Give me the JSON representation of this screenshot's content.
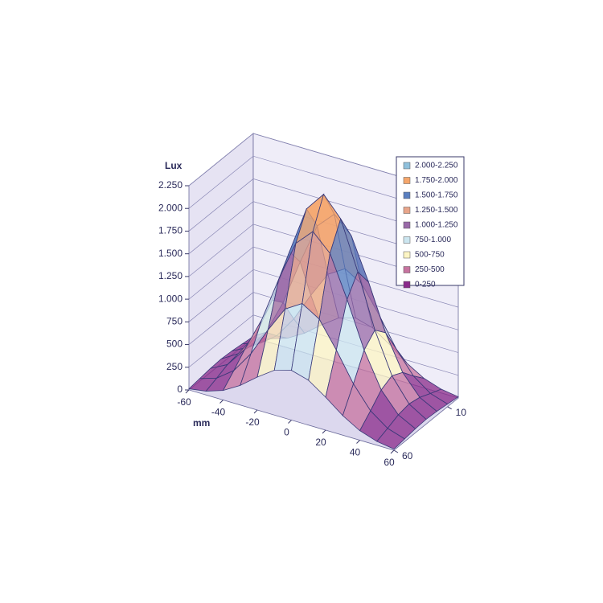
{
  "chart_data": {
    "type": "surface",
    "y_label": "Lux",
    "x_label": "mm",
    "x": [
      -60,
      -50,
      -40,
      -30,
      -20,
      -10,
      0,
      10,
      20,
      30,
      40,
      50,
      60
    ],
    "depth": [
      0,
      10,
      20,
      30,
      40,
      50,
      60
    ],
    "z": [
      [
        13,
        42,
        105,
        216,
        363,
        494,
        548,
        494,
        363,
        216,
        105,
        42,
        13
      ],
      [
        29,
        90,
        228,
        469,
        786,
        1072,
        1188,
        1072,
        786,
        469,
        228,
        90,
        29
      ],
      [
        45,
        143,
        362,
        745,
        1248,
        1700,
        1885,
        1700,
        1248,
        745,
        362,
        143,
        45
      ],
      [
        53,
        167,
        422,
        869,
        1456,
        1984,
        2200,
        1984,
        1456,
        869,
        422,
        167,
        53
      ],
      [
        45,
        143,
        362,
        745,
        1248,
        1700,
        1885,
        1700,
        1248,
        745,
        362,
        143,
        45
      ],
      [
        29,
        90,
        228,
        469,
        786,
        1072,
        1188,
        1072,
        786,
        469,
        228,
        90,
        29
      ],
      [
        13,
        42,
        105,
        216,
        363,
        494,
        548,
        494,
        363,
        216,
        105,
        42,
        13
      ]
    ],
    "xlim": [
      -60,
      60
    ],
    "xticks": [
      -60,
      -40,
      -20,
      0,
      20,
      40,
      60
    ],
    "depthlim": [
      0,
      60
    ],
    "depth_ticks": [
      10,
      60
    ],
    "ylim": [
      0,
      2250
    ],
    "yticks": [
      {
        "value": 0,
        "label": "0"
      },
      {
        "value": 250,
        "label": "250"
      },
      {
        "value": 500,
        "label": "500"
      },
      {
        "value": 750,
        "label": "750"
      },
      {
        "value": 1000,
        "label": "1.000"
      },
      {
        "value": 1250,
        "label": "1.250"
      },
      {
        "value": 1500,
        "label": "1.500"
      },
      {
        "value": 1750,
        "label": "1.750"
      },
      {
        "value": 2000,
        "label": "2.000"
      },
      {
        "value": 2250,
        "label": "2.250"
      }
    ],
    "bands": [
      {
        "label": "2.000-2.250",
        "from": 2000,
        "to": 2250,
        "color": "#8fc0dc"
      },
      {
        "label": "1.750-2.000",
        "from": 1750,
        "to": 2000,
        "color": "#f5a66b"
      },
      {
        "label": "1.500-1.750",
        "from": 1500,
        "to": 1750,
        "color": "#5a7fc0"
      },
      {
        "label": "1.250-1.500",
        "from": 1250,
        "to": 1500,
        "color": "#e8a58a"
      },
      {
        "label": "1.000-1.250",
        "from": 1000,
        "to": 1250,
        "color": "#9a6aa8"
      },
      {
        "label": "750-1.000",
        "from": 750,
        "to": 1000,
        "color": "#cce6f0"
      },
      {
        "label": "500-750",
        "from": 500,
        "to": 750,
        "color": "#fdf5c4"
      },
      {
        "label": "250-500",
        "from": 250,
        "to": 500,
        "color": "#c7739f"
      },
      {
        "label": "0-250",
        "from": 0,
        "to": 250,
        "color": "#8a2a8a"
      }
    ],
    "grid": true
  }
}
